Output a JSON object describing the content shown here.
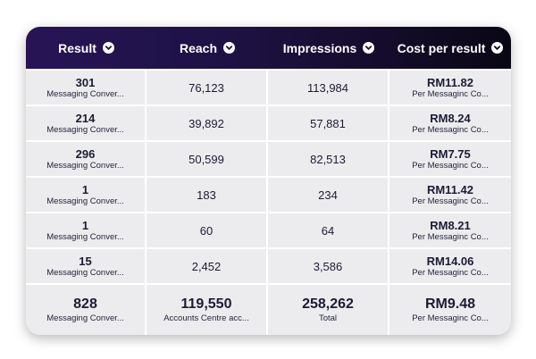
{
  "header": {
    "columns": [
      "Result",
      "Reach",
      "Impressions",
      "Cost per result"
    ]
  },
  "rows": [
    {
      "result": "301",
      "result_label": "Messaging Conver...",
      "reach": "76,123",
      "impressions": "113,984",
      "cost": "RM11.82",
      "cost_label": "Per Messaginc Co..."
    },
    {
      "result": "214",
      "result_label": "Messaging Conver...",
      "reach": "39,892",
      "impressions": "57,881",
      "cost": "RM8.24",
      "cost_label": "Per Messaginc Co..."
    },
    {
      "result": "296",
      "result_label": "Messaging Conver...",
      "reach": "50,599",
      "impressions": "82,513",
      "cost": "RM7.75",
      "cost_label": "Per Messaginc Co..."
    },
    {
      "result": "1",
      "result_label": "Messaging Conver...",
      "reach": "183",
      "impressions": "234",
      "cost": "RM11.42",
      "cost_label": "Per Messaginc Co..."
    },
    {
      "result": "1",
      "result_label": "Messaging Conver...",
      "reach": "60",
      "impressions": "64",
      "cost": "RM8.21",
      "cost_label": "Per Messaginc Co..."
    },
    {
      "result": "15",
      "result_label": "Messaging Conver...",
      "reach": "2,452",
      "impressions": "3,586",
      "cost": "RM14.06",
      "cost_label": "Per Messaginc Co..."
    }
  ],
  "totals": {
    "result": "828",
    "result_label": "Messaging Conver...",
    "reach": "119,550",
    "reach_label": "Accounts Centre acc...",
    "impressions": "258,262",
    "impressions_label": "Total",
    "cost": "RM9.48",
    "cost_label": "Per Messaginc Co..."
  },
  "colors": {
    "header_start": "#271456",
    "header_end": "#0a0714",
    "cell_bg": "#ececef",
    "text": "#1c1b33"
  }
}
